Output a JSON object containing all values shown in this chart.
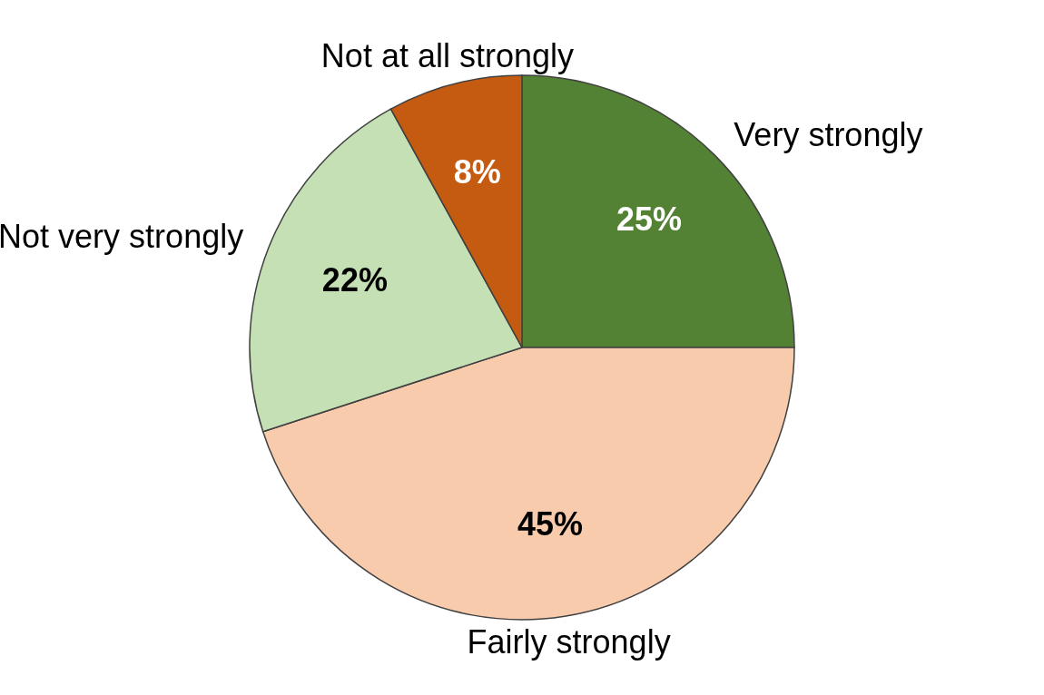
{
  "chart_data": {
    "type": "pie",
    "categories": [
      "Very strongly",
      "Fairly strongly",
      "Not very strongly",
      "Not at all strongly"
    ],
    "values": [
      25,
      45,
      22,
      8
    ],
    "colors": [
      "#548235",
      "#f8cbad",
      "#c5e0b4",
      "#c55a11"
    ],
    "value_labels": [
      "25%",
      "45%",
      "22%",
      "8%"
    ]
  }
}
